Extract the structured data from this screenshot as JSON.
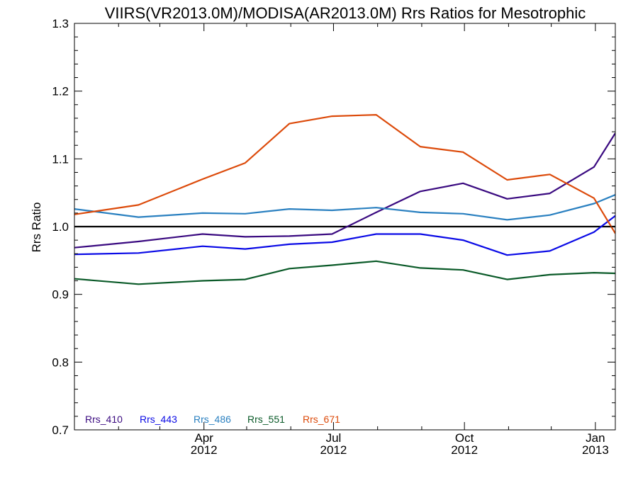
{
  "title": "VIIRS(VR2013.0M)/MODISA(AR2013.0M)  Rrs Ratios for Mesotrophic",
  "chart_data": {
    "type": "line",
    "title": "VIIRS(VR2013.0M)/MODISA(AR2013.0M)  Rrs Ratios for Mesotrophic",
    "ylabel": "Rrs Ratio",
    "xlabel": "",
    "ylim": [
      0.7,
      1.3
    ],
    "xlim": [
      "2012-01-01",
      "2013-01-15"
    ],
    "yticks": [
      {
        "value": 0.7,
        "label": "0.7"
      },
      {
        "value": 0.8,
        "label": "0.8"
      },
      {
        "value": 0.9,
        "label": "0.9"
      },
      {
        "value": 1.0,
        "label": "1.0"
      },
      {
        "value": 1.1,
        "label": "1.1"
      },
      {
        "value": 1.2,
        "label": "1.2"
      },
      {
        "value": 1.3,
        "label": "1.3"
      }
    ],
    "xticks": [
      {
        "date": "2012-04-01",
        "line1": "Apr",
        "line2": "2012"
      },
      {
        "date": "2012-07-01",
        "line1": "Jul",
        "line2": "2012"
      },
      {
        "date": "2012-10-01",
        "line1": "Oct",
        "line2": "2012"
      },
      {
        "date": "2013-01-01",
        "line1": "Jan",
        "line2": "2013"
      }
    ],
    "x_minor_ticks": [
      "2012-02-01",
      "2012-03-01",
      "2012-05-01",
      "2012-06-01",
      "2012-08-01",
      "2012-09-01",
      "2012-11-01",
      "2012-12-01"
    ],
    "reference_line": {
      "y": 1.0,
      "color": "#000000"
    },
    "x": [
      "2012-01-01",
      "2012-02-15",
      "2012-03-31",
      "2012-04-30",
      "2012-05-31",
      "2012-06-30",
      "2012-07-31",
      "2012-08-31",
      "2012-09-30",
      "2012-10-31",
      "2012-11-30",
      "2012-12-31",
      "2013-01-15"
    ],
    "series": [
      {
        "name": "Rrs_410",
        "color": "#3a0a80",
        "values": [
          0.969,
          0.978,
          0.989,
          0.985,
          0.986,
          0.989,
          1.021,
          1.052,
          1.064,
          1.041,
          1.049,
          1.088,
          1.138
        ]
      },
      {
        "name": "Rrs_443",
        "color": "#0a0ae6",
        "values": [
          0.959,
          0.961,
          0.971,
          0.967,
          0.974,
          0.977,
          0.989,
          0.989,
          0.98,
          0.958,
          0.964,
          0.992,
          1.016
        ]
      },
      {
        "name": "Rrs_486",
        "color": "#2a80c0",
        "values": [
          1.026,
          1.014,
          1.02,
          1.019,
          1.026,
          1.024,
          1.028,
          1.021,
          1.019,
          1.01,
          1.017,
          1.034,
          1.047
        ]
      },
      {
        "name": "Rrs_551",
        "color": "#0a5a28",
        "values": [
          0.923,
          0.915,
          0.92,
          0.922,
          0.938,
          0.943,
          0.949,
          0.939,
          0.936,
          0.922,
          0.929,
          0.932,
          0.931
        ]
      },
      {
        "name": "Rrs_671",
        "color": "#dc4a0a",
        "values": [
          1.018,
          1.032,
          1.07,
          1.094,
          1.152,
          1.163,
          1.165,
          1.118,
          1.11,
          1.069,
          1.077,
          1.042,
          0.99
        ]
      }
    ],
    "legend_position": "bottom-left",
    "grid": false
  }
}
